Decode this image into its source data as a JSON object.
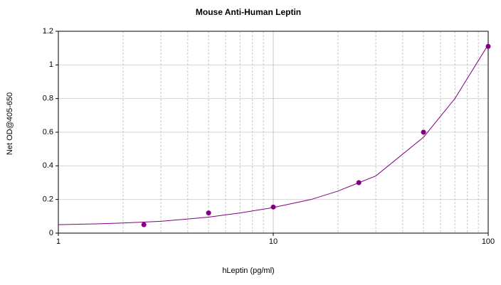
{
  "chart_data": {
    "type": "scatter",
    "title": "Mouse Anti-Human Leptin",
    "x_label": "hLeptin (pg/ml)",
    "y_label": "Net OD@405-650",
    "x_scale": "log",
    "xlim": [
      1,
      100
    ],
    "xticks": [
      1,
      10,
      100
    ],
    "xminorticks": [
      2,
      3,
      4,
      5,
      6,
      7,
      8,
      9,
      20,
      30,
      40,
      50,
      60,
      70,
      80,
      90
    ],
    "ylim": [
      0,
      1.2
    ],
    "yticks": [
      0,
      0.2,
      0.4,
      0.6,
      0.8,
      1,
      1.2
    ],
    "grid": true,
    "points": {
      "color": "#800080",
      "x": [
        2.5,
        5,
        10,
        25,
        50,
        100
      ],
      "values": [
        0.05,
        0.12,
        0.155,
        0.3,
        0.6,
        1.11
      ]
    },
    "fit": {
      "color": "#800080",
      "x": [
        1,
        1.5,
        2,
        3,
        5,
        7,
        10,
        15,
        20,
        30,
        50,
        70,
        100
      ],
      "values": [
        0.05,
        0.055,
        0.06,
        0.07,
        0.095,
        0.12,
        0.152,
        0.2,
        0.25,
        0.34,
        0.57,
        0.8,
        1.12
      ]
    }
  }
}
